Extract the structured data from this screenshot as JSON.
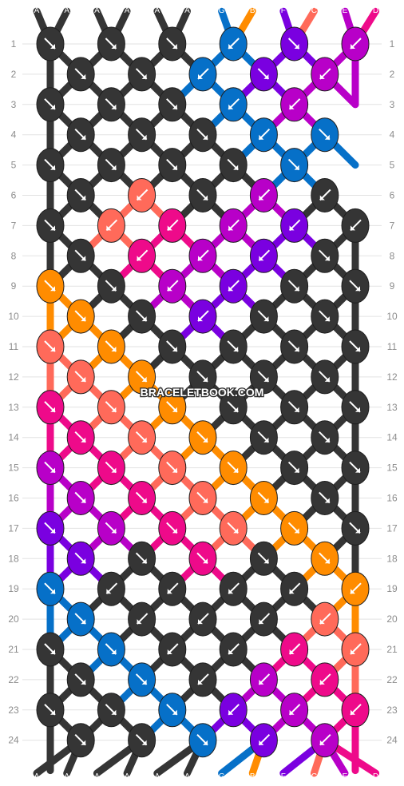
{
  "watermark": "BRACELETBOOK.COM",
  "rows": [
    "1",
    "2",
    "3",
    "4",
    "5",
    "6",
    "7",
    "8",
    "9",
    "10",
    "11",
    "12",
    "13",
    "14",
    "15",
    "16",
    "17",
    "18",
    "19",
    "20",
    "21",
    "22",
    "23",
    "24"
  ],
  "strands_top": [
    "A",
    "A",
    "A",
    "A",
    "A",
    "A",
    "G",
    "B",
    "F",
    "C",
    "E",
    "D"
  ],
  "strands_bottom": [
    "A",
    "A",
    "A",
    "A",
    "A",
    "A",
    "G",
    "B",
    "F",
    "C",
    "E",
    "D"
  ],
  "colors": {
    "A": "#353535",
    "B": "#ff8c00",
    "C": "#ff6a5a",
    "D": "#ee0a8a",
    "E": "#b800c8",
    "F": "#7a00e0",
    "G": "#0670c8"
  },
  "knots": [
    [
      "A:se",
      "A:se",
      "A:se",
      "G:sw",
      "F:se",
      "E:sw"
    ],
    [
      "A:se",
      "A:se",
      "G:sw",
      "F:se",
      "E:sw"
    ],
    [
      "A:se",
      "A:se",
      "A:se",
      "G:sw",
      "E:sw"
    ],
    [
      "A:se",
      "A:se",
      "A:se",
      "G:sw",
      "G:se"
    ],
    [
      "A:se",
      "A:se",
      "A:se",
      "A:se",
      "G:se"
    ],
    [
      "A:se",
      "C:sw",
      "A:se",
      "E:sw",
      "A:sw"
    ],
    [
      "A:se",
      "C:sw",
      "D:sw",
      "E:sw",
      "F:sw",
      "A:sw"
    ],
    [
      "A:se",
      "D:sw",
      "E:sw",
      "F:sw",
      "A:se"
    ],
    [
      "B:se",
      "A:se",
      "E:sw",
      "F:sw",
      "A:se",
      "A:se"
    ],
    [
      "B:se",
      "A:se",
      "F:sw",
      "A:se",
      "A:se"
    ],
    [
      "C:se",
      "B:se",
      "A:se",
      "A:se",
      "A:se",
      "A:se"
    ],
    [
      "C:se",
      "B:se",
      "A:se",
      "A:se",
      "A:se"
    ],
    [
      "D:se",
      "C:se",
      "B:se",
      "A:se",
      "A:se",
      "A:se"
    ],
    [
      "D:se",
      "C:se",
      "B:se",
      "A:se",
      "A:se"
    ],
    [
      "E:se",
      "D:se",
      "C:se",
      "B:se",
      "A:se",
      "A:se"
    ],
    [
      "E:se",
      "D:se",
      "C:se",
      "B:se",
      "A:se"
    ],
    [
      "F:se",
      "E:se",
      "D:se",
      "C:se",
      "B:se",
      "A:se"
    ],
    [
      "F:se",
      "A:se",
      "D:se",
      "A:se",
      "B:se"
    ],
    [
      "G:se",
      "A:sw",
      "A:sw",
      "A:sw",
      "A:sw",
      "B:sw"
    ],
    [
      "G:se",
      "A:sw",
      "A:sw",
      "A:sw",
      "C:sw"
    ],
    [
      "A:se",
      "G:se",
      "A:sw",
      "A:sw",
      "D:sw",
      "C:sw"
    ],
    [
      "A:se",
      "G:se",
      "A:sw",
      "E:sw",
      "D:sw"
    ],
    [
      "A:se",
      "A:se",
      "G:se",
      "F:sw",
      "E:sw",
      "D:sw"
    ],
    [
      "A:se",
      "A:se",
      "G:se",
      "F:sw",
      "E:sw"
    ]
  ]
}
